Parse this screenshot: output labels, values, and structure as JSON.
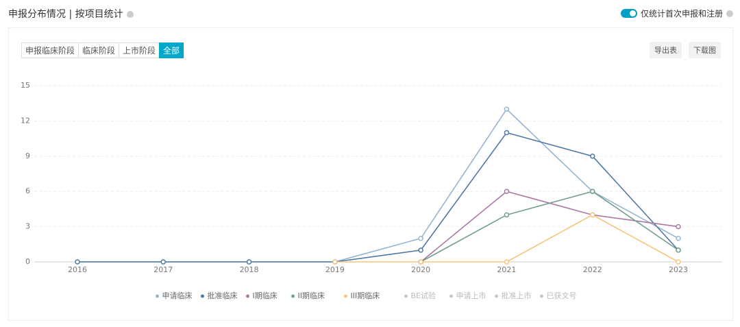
{
  "header": {
    "title": "申报分布情况 | 按项目统计",
    "toggle": "仅统计首次申报和注册"
  },
  "tabs": [
    "申报临床阶段",
    "临床阶段",
    "上市阶段",
    "全部"
  ],
  "active_tab": 3,
  "buttons": [
    "导出表",
    "下载图"
  ],
  "chart_data": {
    "type": "line",
    "categories": [
      "2016",
      "2017",
      "2018",
      "2019",
      "2020",
      "2021",
      "2022",
      "2023"
    ],
    "series": [
      {
        "name": "申请临床",
        "color": "#93b5d3",
        "values": [
          0,
          0,
          0,
          0,
          2,
          13,
          6,
          2
        ]
      },
      {
        "name": "批准临床",
        "color": "#4e78a5",
        "values": [
          0,
          0,
          0,
          0,
          1,
          11,
          9,
          1
        ]
      },
      {
        "name": "I期临床",
        "color": "#ac76a4",
        "values": [
          null,
          null,
          null,
          null,
          0,
          6,
          4,
          3
        ]
      },
      {
        "name": "II期临床",
        "color": "#739c89",
        "values": [
          null,
          null,
          null,
          null,
          0,
          4,
          6,
          1
        ]
      },
      {
        "name": "III期临床",
        "color": "#f8c47e",
        "values": [
          null,
          null,
          null,
          0,
          0,
          0,
          4,
          0
        ]
      }
    ],
    "inactive_legend": [
      "BE试验",
      "申请上市",
      "批准上市",
      "已获文号"
    ],
    "inactive_color": "#c8c8c8",
    "ylim": [
      0,
      15
    ],
    "yticks": [
      0,
      3,
      6,
      9,
      12,
      15
    ],
    "grid": true
  }
}
